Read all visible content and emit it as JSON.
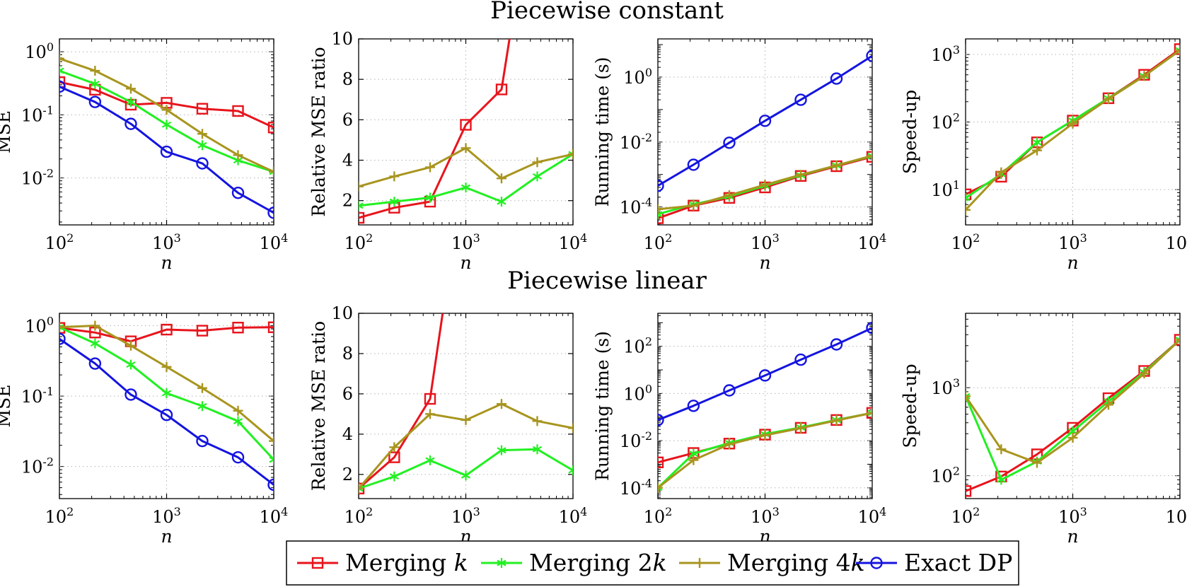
{
  "figure": {
    "row_titles": [
      "Piecewise constant",
      "Piecewise linear"
    ]
  },
  "legend": {
    "entries": [
      {
        "key": "k",
        "label": "Merging ",
        "italic": "k",
        "color": "#e8141c",
        "marker": "square"
      },
      {
        "key": "k2",
        "label": "Merging 2",
        "italic": "k",
        "color": "#22f022",
        "marker": "asterisk"
      },
      {
        "key": "k4",
        "label": "Merging 4",
        "italic": "k",
        "color": "#a8951e",
        "marker": "plus"
      },
      {
        "key": "dp",
        "label": "Exact DP",
        "italic": "",
        "color": "#1414e0",
        "marker": "circle"
      }
    ]
  },
  "chart_data": [
    {
      "type": "line",
      "row": 0,
      "col": 0,
      "xlabel": "n",
      "ylabel": "MSE",
      "xscale": "log",
      "yscale": "log",
      "xlim": [
        100,
        10000
      ],
      "ylim": [
        0.0018,
        1.6
      ],
      "grid": true,
      "x": [
        100,
        215,
        464,
        1000,
        2154,
        4642,
        10000
      ],
      "series": [
        {
          "key": "k",
          "values": [
            0.33,
            0.25,
            0.145,
            0.155,
            0.125,
            0.115,
            0.063
          ]
        },
        {
          "key": "k2",
          "values": [
            0.5,
            0.31,
            0.16,
            0.07,
            0.033,
            0.019,
            0.0125
          ]
        },
        {
          "key": "k4",
          "values": [
            0.78,
            0.5,
            0.26,
            0.12,
            0.05,
            0.023,
            0.0125
          ]
        },
        {
          "key": "dp",
          "values": [
            0.28,
            0.16,
            0.072,
            0.026,
            0.017,
            0.0058,
            0.0028
          ]
        }
      ]
    },
    {
      "type": "line",
      "row": 0,
      "col": 1,
      "xlabel": "n",
      "ylabel": "Relative MSE ratio",
      "xscale": "log",
      "yscale": "linear",
      "xlim": [
        100,
        10000
      ],
      "ylim": [
        0.8,
        10
      ],
      "yticks": [
        2,
        4,
        6,
        8,
        10
      ],
      "grid": true,
      "x": [
        100,
        215,
        464,
        1000,
        2154,
        4642,
        10000
      ],
      "series": [
        {
          "key": "k",
          "x": [
            100,
            215,
            464,
            1000,
            2154,
            2700
          ],
          "values": [
            1.15,
            1.65,
            1.95,
            5.75,
            7.5,
            10.8
          ]
        },
        {
          "key": "k2",
          "values": [
            1.75,
            1.95,
            2.15,
            2.65,
            1.95,
            3.2,
            4.3
          ]
        },
        {
          "key": "k4",
          "values": [
            2.7,
            3.2,
            3.65,
            4.6,
            3.1,
            3.9,
            4.3
          ]
        }
      ]
    },
    {
      "type": "line",
      "row": 0,
      "col": 2,
      "xlabel": "n",
      "ylabel": "Running time (s)",
      "xscale": "log",
      "yscale": "log",
      "xlim": [
        100,
        10000
      ],
      "ylim": [
        2.8e-05,
        15
      ],
      "grid": true,
      "x": [
        100,
        215,
        464,
        1000,
        2154,
        4642,
        10000
      ],
      "series": [
        {
          "key": "k",
          "values": [
            4.5e-05,
            0.00011,
            0.00019,
            0.0004,
            0.0009,
            0.0018,
            0.0035
          ]
        },
        {
          "key": "k2",
          "values": [
            6e-05,
            0.00012,
            0.00021,
            0.00045,
            0.00095,
            0.0019,
            0.0037
          ]
        },
        {
          "key": "k4",
          "values": [
            8.5e-05,
            0.00011,
            0.00023,
            0.00048,
            0.00098,
            0.0019,
            0.0038
          ]
        },
        {
          "key": "dp",
          "values": [
            0.00045,
            0.002,
            0.0095,
            0.045,
            0.2,
            0.9,
            4.5
          ]
        }
      ]
    },
    {
      "type": "line",
      "row": 0,
      "col": 3,
      "xlabel": "n",
      "ylabel": "Speed-up",
      "xscale": "log",
      "yscale": "log",
      "xlim": [
        100,
        10000
      ],
      "ylim": [
        3,
        1700
      ],
      "grid": true,
      "x": [
        100,
        215,
        464,
        1000,
        2154,
        4642,
        10000
      ],
      "series": [
        {
          "key": "k",
          "values": [
            8.5,
            15.5,
            50,
            105,
            225,
            500,
            1200
          ]
        },
        {
          "key": "k2",
          "values": [
            7.5,
            17,
            50,
            105,
            225,
            480,
            1150
          ]
        },
        {
          "key": "k4",
          "values": [
            5,
            18,
            38,
            95,
            220,
            480,
            1150
          ]
        }
      ]
    },
    {
      "type": "line",
      "row": 1,
      "col": 0,
      "xlabel": "n",
      "ylabel": "MSE",
      "xscale": "log",
      "yscale": "log",
      "xlim": [
        100,
        10000
      ],
      "ylim": [
        0.0035,
        1.5
      ],
      "grid": true,
      "x": [
        100,
        215,
        464,
        1000,
        2154,
        4642,
        10000
      ],
      "series": [
        {
          "key": "k",
          "values": [
            0.93,
            0.8,
            0.6,
            0.88,
            0.85,
            0.94,
            0.95
          ]
        },
        {
          "key": "k2",
          "values": [
            0.95,
            0.56,
            0.28,
            0.11,
            0.072,
            0.044,
            0.0125
          ]
        },
        {
          "key": "k4",
          "values": [
            0.95,
            1.0,
            0.52,
            0.26,
            0.13,
            0.062,
            0.023
          ]
        },
        {
          "key": "dp",
          "values": [
            0.65,
            0.29,
            0.105,
            0.054,
            0.023,
            0.0135,
            0.0055
          ]
        }
      ]
    },
    {
      "type": "line",
      "row": 1,
      "col": 1,
      "xlabel": "n",
      "ylabel": "Relative MSE ratio",
      "xscale": "log",
      "yscale": "linear",
      "xlim": [
        100,
        10000
      ],
      "ylim": [
        0.8,
        10
      ],
      "yticks": [
        2,
        4,
        6,
        8,
        10
      ],
      "grid": true,
      "x": [
        100,
        215,
        464,
        1000,
        2154,
        4642,
        10000
      ],
      "series": [
        {
          "key": "k",
          "x": [
            100,
            215,
            464,
            640
          ],
          "values": [
            1.3,
            2.85,
            5.75,
            10.8
          ]
        },
        {
          "key": "k2",
          "values": [
            1.3,
            1.9,
            2.7,
            1.95,
            3.2,
            3.25,
            2.2
          ]
        },
        {
          "key": "k4",
          "values": [
            1.3,
            3.35,
            5.0,
            4.7,
            5.5,
            4.65,
            4.3
          ]
        }
      ]
    },
    {
      "type": "line",
      "row": 1,
      "col": 2,
      "xlabel": "n",
      "ylabel": "Running time (s)",
      "xscale": "log",
      "yscale": "log",
      "xlim": [
        100,
        10000
      ],
      "ylim": [
        3.5e-05,
        2500
      ],
      "grid": true,
      "x": [
        100,
        215,
        464,
        1000,
        2154,
        4642,
        10000
      ],
      "series": [
        {
          "key": "k",
          "values": [
            0.0012,
            0.003,
            0.0075,
            0.018,
            0.035,
            0.075,
            0.15
          ]
        },
        {
          "key": "k2",
          "values": [
            0.0001,
            0.0028,
            0.008,
            0.019,
            0.036,
            0.075,
            0.15
          ]
        },
        {
          "key": "k4",
          "values": [
            0.0001,
            0.0015,
            0.007,
            0.017,
            0.034,
            0.072,
            0.15
          ]
        },
        {
          "key": "dp",
          "values": [
            0.075,
            0.3,
            1.35,
            5.8,
            27,
            120,
            600
          ]
        }
      ]
    },
    {
      "type": "line",
      "row": 1,
      "col": 3,
      "xlabel": "n",
      "ylabel": "Speed-up",
      "xscale": "log",
      "yscale": "log",
      "xlim": [
        100,
        10000
      ],
      "ylim": [
        55,
        7000
      ],
      "grid": true,
      "x": [
        100,
        215,
        464,
        1000,
        2154,
        4642,
        10000
      ],
      "series": [
        {
          "key": "k",
          "values": [
            67,
            98,
            175,
            350,
            760,
            1550,
            3500
          ]
        },
        {
          "key": "k2",
          "values": [
            800,
            90,
            145,
            320,
            700,
            1500,
            3500
          ]
        },
        {
          "key": "k4",
          "values": [
            800,
            200,
            140,
            270,
            640,
            1450,
            3500
          ]
        }
      ]
    }
  ]
}
